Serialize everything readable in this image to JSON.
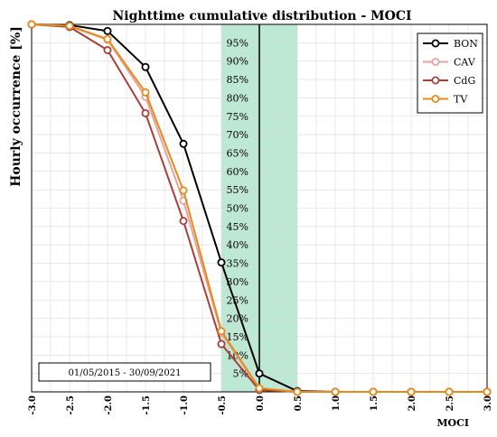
{
  "chart_data": {
    "type": "line",
    "title": "Nighttime cumulative distribution - MOCI",
    "xlabel": "MOCI",
    "ylabel": "Hourly occurrence [%]",
    "xlim": [
      -3.0,
      3.0
    ],
    "ylim": [
      0,
      100
    ],
    "x_ticks": [
      "-3.0",
      "-2.5",
      "-2.0",
      "-1.5",
      "-1.0",
      "-0.5",
      "0.0",
      "0.5",
      "1.0",
      "1.5",
      "2.0",
      "2.5",
      "3.0"
    ],
    "band": {
      "x_range": [
        -0.5,
        0.5
      ],
      "color": "#bde8d4"
    },
    "band_labels": [
      "5%",
      "10%",
      "15%",
      "20%",
      "25%",
      "30%",
      "35%",
      "40%",
      "45%",
      "50%",
      "55%",
      "60%",
      "65%",
      "70%",
      "75%",
      "80%",
      "85%",
      "90%",
      "95%"
    ],
    "grid": true,
    "legend_position": "top-right",
    "annotation": "01/05/2015 - 30/09/2021",
    "x": [
      -3.0,
      -2.5,
      -2.0,
      -1.5,
      -1.0,
      -0.5,
      0.0,
      0.5,
      1.0,
      1.5,
      2.0,
      2.5,
      3.0
    ],
    "series": [
      {
        "name": "BON",
        "color": "#000000",
        "values": [
          100,
          99.8,
          98.2,
          88.4,
          67.5,
          35.2,
          5.0,
          0.2,
          0,
          0,
          0,
          0,
          0
        ]
      },
      {
        "name": "CAV",
        "color": "#e3a5a2",
        "values": [
          100,
          99.5,
          95.8,
          80.3,
          52.0,
          16.0,
          0.8,
          0,
          0,
          0,
          0,
          0,
          0
        ]
      },
      {
        "name": "CdG",
        "color": "#a8403a",
        "values": [
          100,
          99.3,
          93.0,
          75.8,
          46.5,
          13.0,
          0.5,
          0,
          0,
          0,
          0,
          0,
          0
        ]
      },
      {
        "name": "TV",
        "color": "#e88a1a",
        "values": [
          100,
          99.6,
          96.0,
          81.5,
          54.8,
          16.5,
          1.0,
          0,
          0,
          0,
          0,
          0,
          0
        ]
      }
    ]
  }
}
